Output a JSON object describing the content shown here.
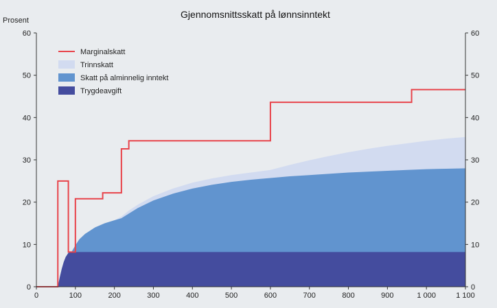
{
  "chart_data": {
    "type": "area",
    "title": "Gjennomsnittsskatt på lønnsinntekt",
    "ylabel": "Prosent",
    "xlim": [
      0,
      1100
    ],
    "ylim": [
      0,
      60
    ],
    "x_ticks": [
      0,
      100,
      200,
      300,
      400,
      500,
      600,
      700,
      800,
      900,
      1000,
      1100
    ],
    "x_tick_labels": [
      "0",
      "100",
      "200",
      "300",
      "400",
      "500",
      "600",
      "700",
      "800",
      "900",
      "1 000",
      "1 100"
    ],
    "y_ticks": [
      0,
      10,
      20,
      30,
      40,
      50,
      60
    ],
    "y_tick_labels": [
      "0",
      "10",
      "20",
      "30",
      "40",
      "50",
      "60"
    ],
    "legend_position": "top-left",
    "series": [
      {
        "name": "Marginalskatt",
        "kind": "step-line",
        "color": "#e8434a",
        "points": [
          [
            0,
            0
          ],
          [
            55,
            0
          ],
          [
            55,
            25
          ],
          [
            82,
            25
          ],
          [
            82,
            8.2
          ],
          [
            100,
            8.2
          ],
          [
            100,
            20.8
          ],
          [
            170,
            20.8
          ],
          [
            170,
            22.2
          ],
          [
            218,
            22.2
          ],
          [
            218,
            32.6
          ],
          [
            237,
            32.6
          ],
          [
            237,
            34.5
          ],
          [
            600,
            34.5
          ],
          [
            600,
            43.6
          ],
          [
            962,
            43.6
          ],
          [
            962,
            46.6
          ],
          [
            1100,
            46.6
          ]
        ]
      },
      {
        "name": "Trinnskatt",
        "kind": "area",
        "color": "#d2dbf0",
        "x": [
          0,
          55,
          60,
          65,
          70,
          75,
          82,
          90,
          100,
          110,
          125,
          150,
          175,
          200,
          218,
          237,
          260,
          300,
          350,
          400,
          450,
          500,
          550,
          600,
          650,
          700,
          750,
          800,
          850,
          900,
          950,
          1000,
          1050,
          1100
        ],
        "values": [
          0,
          0,
          2.2,
          4.2,
          5.8,
          7.0,
          8.0,
          8.2,
          9.8,
          11.2,
          12.5,
          14.0,
          15.0,
          15.7,
          16.6,
          18.0,
          19.4,
          21.4,
          23.2,
          24.6,
          25.6,
          26.4,
          27.0,
          27.6,
          28.8,
          29.9,
          30.9,
          31.8,
          32.6,
          33.3,
          33.9,
          34.5,
          35.0,
          35.4
        ]
      },
      {
        "name": "Skatt på alminnelig inntekt",
        "kind": "area",
        "color": "#6194cf",
        "x": [
          0,
          55,
          60,
          65,
          70,
          75,
          82,
          90,
          100,
          110,
          125,
          150,
          175,
          200,
          218,
          237,
          260,
          300,
          350,
          400,
          450,
          500,
          550,
          600,
          650,
          700,
          750,
          800,
          850,
          900,
          950,
          1000,
          1050,
          1100
        ],
        "values": [
          0,
          0,
          2.2,
          4.2,
          5.8,
          7.0,
          8.0,
          8.2,
          9.8,
          11.2,
          12.5,
          14.0,
          15.0,
          15.7,
          16.2,
          17.3,
          18.6,
          20.4,
          22.0,
          23.2,
          24.1,
          24.8,
          25.3,
          25.7,
          26.1,
          26.4,
          26.7,
          27.0,
          27.2,
          27.4,
          27.6,
          27.8,
          27.9,
          28.0
        ]
      },
      {
        "name": "Trygdeavgift",
        "kind": "area",
        "color": "#444c9e",
        "x": [
          0,
          55,
          60,
          65,
          70,
          75,
          82,
          90,
          100,
          1100
        ],
        "values": [
          0,
          0,
          2.2,
          4.2,
          5.8,
          7.0,
          8.0,
          8.2,
          8.2,
          8.2
        ]
      }
    ]
  }
}
